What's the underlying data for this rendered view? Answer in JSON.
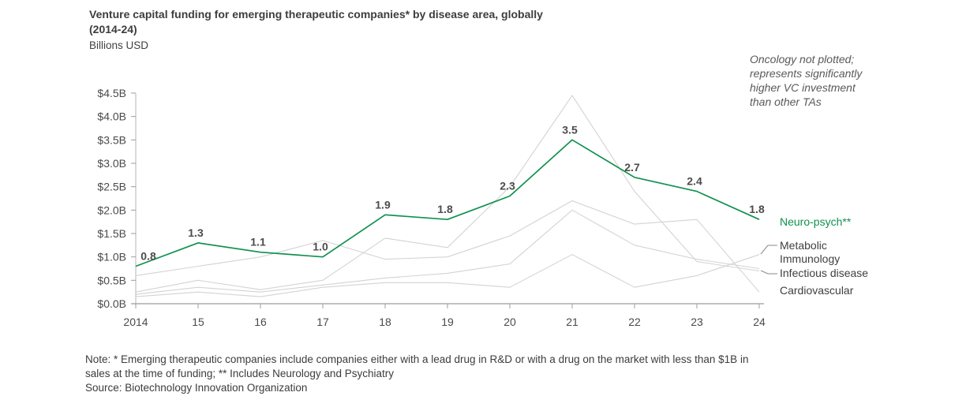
{
  "header": {
    "title_line1": "Venture capital funding for emerging therapeutic companies* by disease area, globally",
    "title_line2": "(2014-24)",
    "subtitle": "Billions USD"
  },
  "annotation": {
    "lines": [
      "Oncology not plotted;",
      "represents significantly",
      "higher VC investment",
      "than other TAs"
    ]
  },
  "chart_data": {
    "type": "line",
    "title": "Venture capital funding for emerging therapeutic companies* by disease area, globally (2014-24)",
    "ylabel": "Billions USD",
    "xlabel": "",
    "x_labels": [
      "2014",
      "15",
      "16",
      "17",
      "18",
      "19",
      "20",
      "21",
      "22",
      "23",
      "24"
    ],
    "y_ticks": [
      {
        "label": "$4.5B",
        "value": 4.5
      },
      {
        "label": "$4.0B",
        "value": 4.0
      },
      {
        "label": "$3.5B",
        "value": 3.5
      },
      {
        "label": "$3.0B",
        "value": 3.0
      },
      {
        "label": "$2.5B",
        "value": 2.5
      },
      {
        "label": "$2.0B",
        "value": 2.0
      },
      {
        "label": "$1.5B",
        "value": 1.5
      },
      {
        "label": "$1.0B",
        "value": 1.0
      },
      {
        "label": "$0.5B",
        "value": 0.5
      },
      {
        "label": "$0.0B",
        "value": 0.0
      }
    ],
    "ylim": [
      0,
      4.5
    ],
    "grid": false,
    "legend_position": "right of line ends",
    "series": [
      {
        "name": "Metabolic",
        "color": "#d3d3d3",
        "emphasis": false,
        "values": [
          0.15,
          0.25,
          0.15,
          0.35,
          0.45,
          0.45,
          0.35,
          1.05,
          0.35,
          0.6,
          1.05
        ]
      },
      {
        "name": "Immunology",
        "color": "#d3d3d3",
        "emphasis": false,
        "values": [
          0.2,
          0.35,
          0.25,
          0.4,
          0.55,
          0.65,
          0.85,
          2.0,
          1.25,
          0.95,
          0.75
        ]
      },
      {
        "name": "Infectious disease",
        "color": "#d3d3d3",
        "emphasis": false,
        "values": [
          0.25,
          0.5,
          0.3,
          0.5,
          1.4,
          1.2,
          2.5,
          4.45,
          2.4,
          0.9,
          0.7
        ]
      },
      {
        "name": "Cardiovascular",
        "color": "#d3d3d3",
        "emphasis": false,
        "values": [
          0.6,
          0.8,
          1.0,
          1.35,
          0.95,
          1.0,
          1.45,
          2.2,
          1.7,
          1.8,
          0.25
        ]
      },
      {
        "name": "Neuro-psych**",
        "color": "#0f9150",
        "emphasis": true,
        "show_point_labels": true,
        "values": [
          0.8,
          1.3,
          1.1,
          1.0,
          1.9,
          1.8,
          2.3,
          3.5,
          2.7,
          2.4,
          1.8
        ]
      }
    ]
  },
  "legend": {
    "neuro_psych": "Neuro-psych**",
    "metabolic": "Metabolic",
    "immunology": "Immunology",
    "infectious": "Infectious disease",
    "cardiovascular": "Cardiovascular"
  },
  "notes": {
    "line1": "Note: * Emerging therapeutic companies include companies either with a lead drug in R&D or with a drug on the market with less than $1B in",
    "line2": "sales at the time of funding; ** Includes Neurology and Psychiatry",
    "source": "Source: Biotechnology Innovation Organization"
  },
  "colors": {
    "accent_green": "#0f9150",
    "gray_line": "#d3d3d3",
    "axis": "#a3a3a3",
    "tick_text": "#4a4a4b",
    "data_label": "#4c4c4d"
  }
}
